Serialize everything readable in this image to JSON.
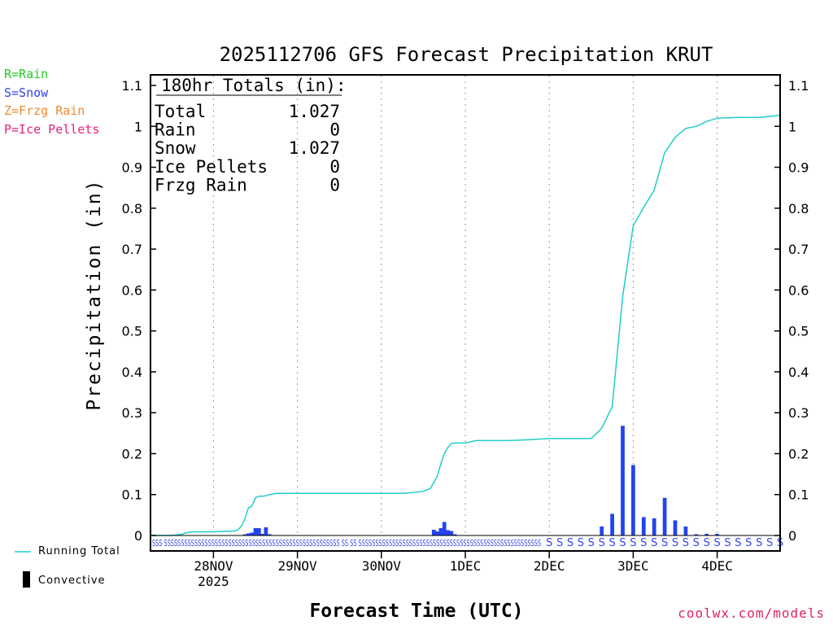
{
  "ptype_legend": [
    {
      "text": "R=Rain",
      "color": "#22cc22"
    },
    {
      "text": "S=Snow",
      "color": "#3344ee"
    },
    {
      "text": "Z=Frzg Rain",
      "color": "#ee8833"
    },
    {
      "text": "P=Ice Pellets",
      "color": "#e0247e"
    }
  ],
  "legend": {
    "running_total_label": "Running Total",
    "convective_label": "Convective",
    "running_total_color": "#22cccc",
    "bar_color": "#2244ee"
  },
  "credit": "coolwx.com/models",
  "chart_data": {
    "type": "bar+line",
    "title": "2025112706 GFS Forecast Precipitation KRUT",
    "xlabel": "Forecast Time (UTC)",
    "ylabel": "Precipitation (in)",
    "ylim": [
      0,
      1.1
    ],
    "yticks": [
      0,
      0.1,
      0.2,
      0.3,
      0.4,
      0.5,
      0.6,
      0.7,
      0.8,
      0.9,
      1,
      1.1
    ],
    "xlim_hours": [
      0,
      180
    ],
    "x_unit": "forecast hours from 2025112706",
    "x_ticks": [
      {
        "hour": 18,
        "label": "28NOV",
        "sublabel": "2025"
      },
      {
        "hour": 42,
        "label": "29NOV",
        "sublabel": ""
      },
      {
        "hour": 66,
        "label": "30NOV",
        "sublabel": ""
      },
      {
        "hour": 90,
        "label": "1DEC",
        "sublabel": ""
      },
      {
        "hour": 114,
        "label": "2DEC",
        "sublabel": ""
      },
      {
        "hour": 138,
        "label": "3DEC",
        "sublabel": ""
      },
      {
        "hour": 162,
        "label": "4DEC",
        "sublabel": ""
      }
    ],
    "grid": "vertical dotted at day ticks",
    "totals_box": {
      "header": "180hr Totals (in):",
      "rows": [
        {
          "label": "Total",
          "value": "1.027"
        },
        {
          "label": "Rain",
          "value": "0"
        },
        {
          "label": "Snow",
          "value": "1.027"
        },
        {
          "label": "Ice Pellets",
          "value": "0"
        },
        {
          "label": "Frzg Rain",
          "value": "0"
        }
      ]
    },
    "bars": {
      "name": "Interval precipitation (in)",
      "hours": [
        27,
        28,
        29,
        30,
        31,
        32,
        33,
        34,
        81,
        82,
        83,
        84,
        85,
        86,
        87,
        129,
        132,
        135,
        138,
        141,
        144,
        147,
        150,
        153,
        156,
        159,
        162
      ],
      "values": [
        0.003,
        0.005,
        0.007,
        0.018,
        0.018,
        0.004,
        0.02,
        0.003,
        0.014,
        0.01,
        0.018,
        0.033,
        0.013,
        0.011,
        0.003,
        0.022,
        0.053,
        0.268,
        0.172,
        0.045,
        0.042,
        0.092,
        0.037,
        0.022,
        0.003,
        0.004,
        0.004
      ]
    },
    "running_total": {
      "name": "Running Total",
      "hours": [
        0,
        6,
        9,
        10,
        12,
        18,
        24,
        25,
        26,
        27,
        28,
        29,
        30,
        31,
        32,
        33,
        34,
        36,
        39,
        42,
        48,
        54,
        60,
        66,
        72,
        75,
        78,
        80,
        81,
        82,
        83,
        84,
        85,
        86,
        87,
        90,
        93,
        96,
        102,
        108,
        114,
        120,
        126,
        129,
        132,
        135,
        138,
        141,
        144,
        147,
        150,
        153,
        156,
        159,
        162,
        165,
        168,
        174,
        180
      ],
      "values": [
        0,
        0,
        0.003,
        0.006,
        0.009,
        0.009,
        0.011,
        0.014,
        0.023,
        0.041,
        0.068,
        0.072,
        0.092,
        0.096,
        0.096,
        0.097,
        0.1,
        0.103,
        0.103,
        0.103,
        0.103,
        0.103,
        0.103,
        0.103,
        0.103,
        0.105,
        0.108,
        0.115,
        0.13,
        0.145,
        0.175,
        0.2,
        0.215,
        0.225,
        0.226,
        0.226,
        0.232,
        0.232,
        0.232,
        0.234,
        0.237,
        0.237,
        0.237,
        0.262,
        0.315,
        0.585,
        0.757,
        0.802,
        0.844,
        0.936,
        0.973,
        0.995,
        1.0,
        1.012,
        1.02,
        1.021,
        1.022,
        1.022,
        1.027
      ]
    },
    "ptype_rows": {
      "dense_text": "SSS SSSSSSSSSSSSSSSSSSSSSSSSSSSSSSSSSSSSSSSSSSSSSSSSSSSS SS SS SSSSSSSSSSSSSSSSSSSSSSSSSSSSSSSSSSSSSSSSSSSSSSSSSSSSSS",
      "sparse_hours": [
        114,
        117,
        120,
        123,
        126,
        129,
        132,
        135,
        138,
        141,
        144,
        147,
        150,
        153,
        156,
        159,
        162,
        165,
        168,
        171,
        174,
        177,
        180
      ],
      "sparse_symbol": "S"
    }
  }
}
